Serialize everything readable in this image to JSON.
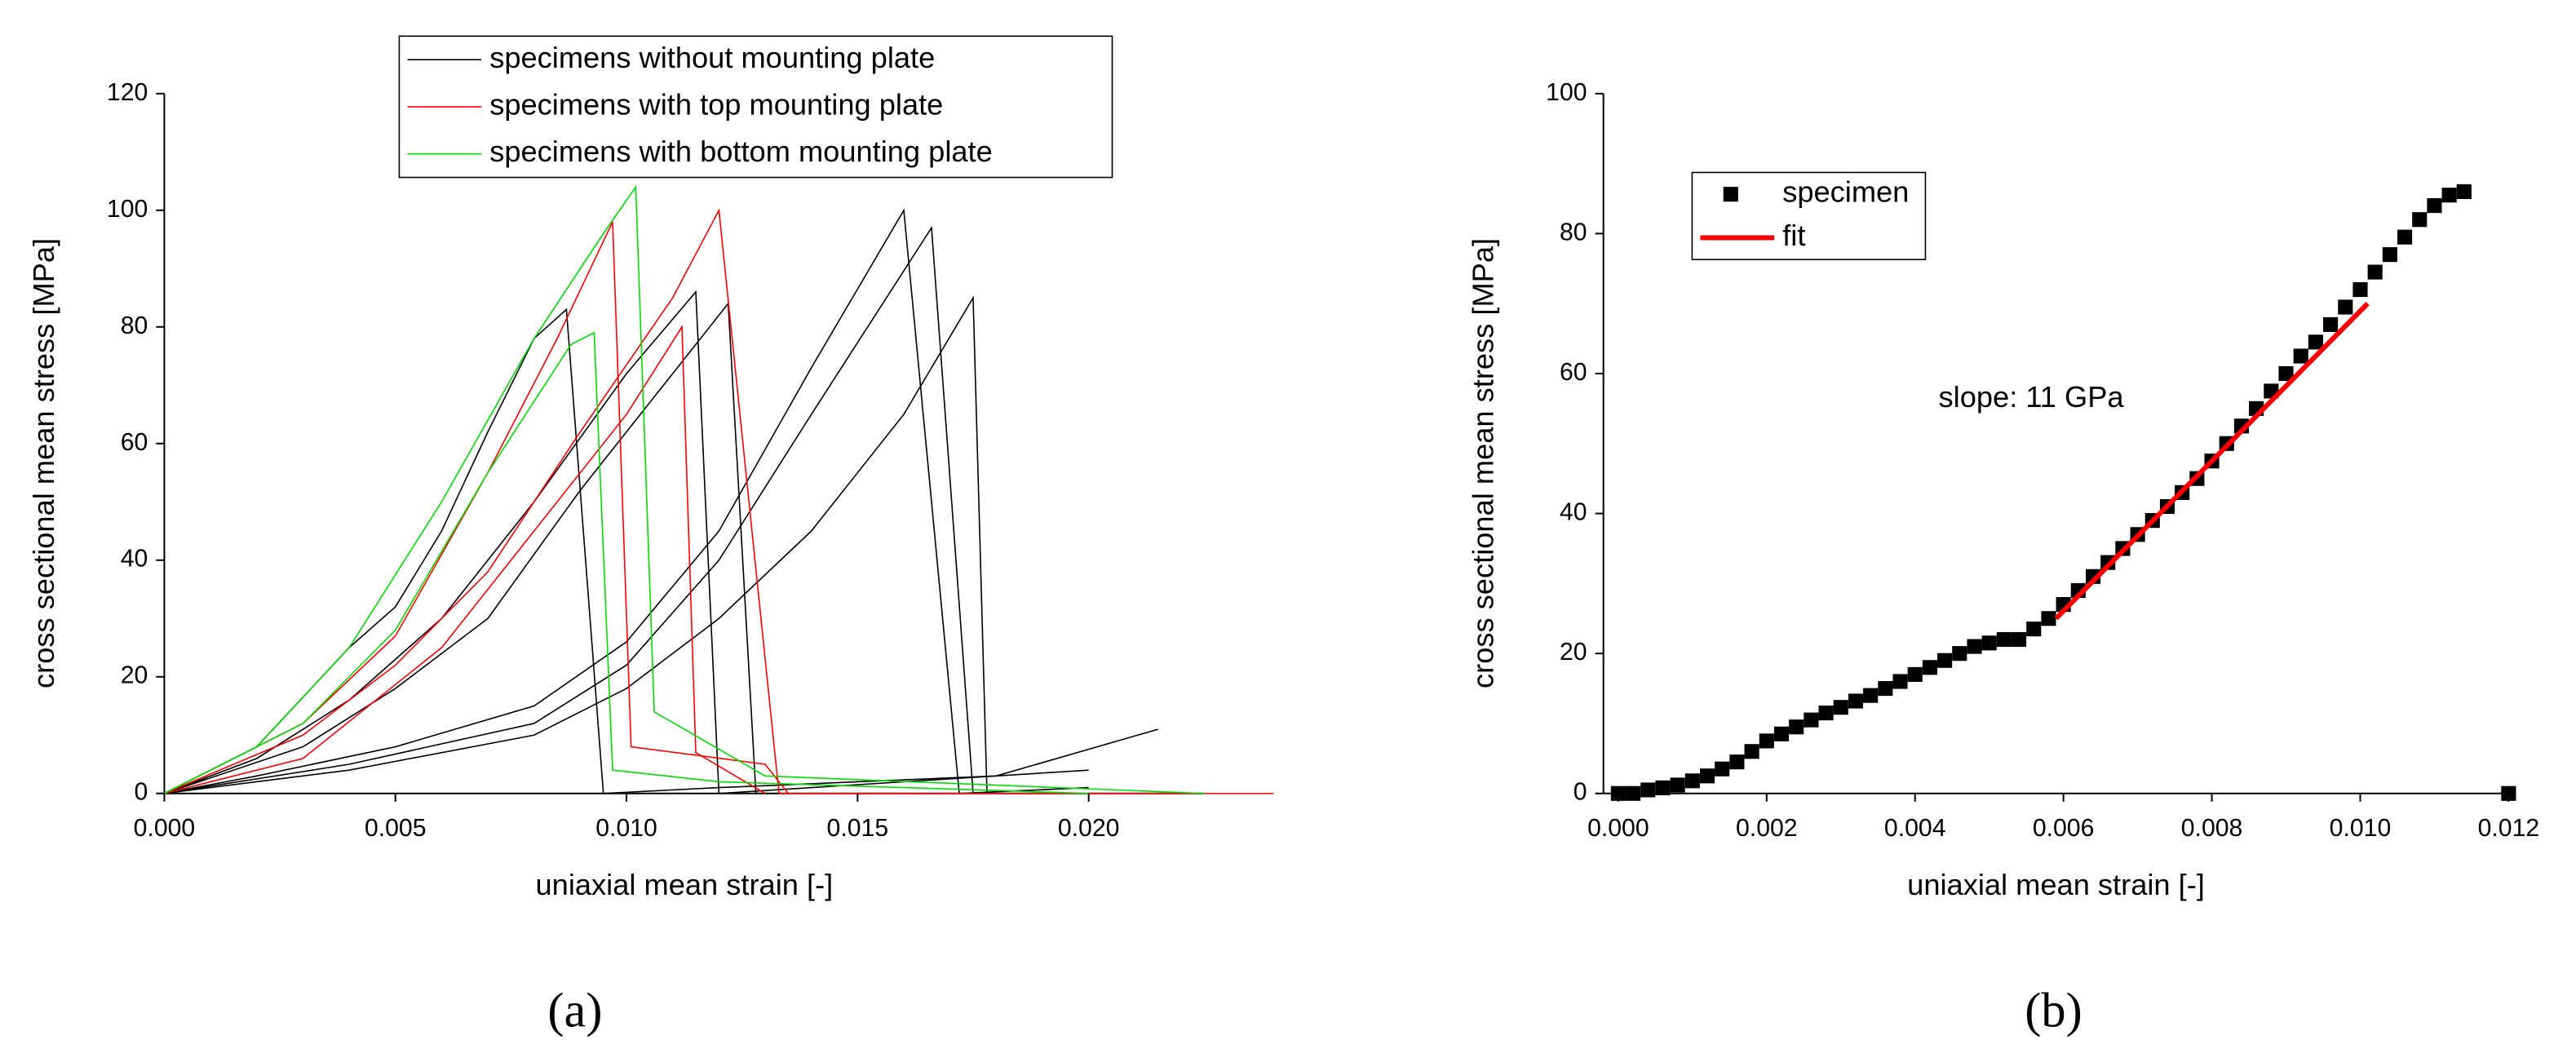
{
  "chart_data": [
    {
      "type": "line",
      "panel_label": "(a)",
      "x_label": "uniaxial mean strain [-]",
      "y_label": "cross sectional mean stress [MPa]",
      "xlim": [
        0,
        0.0225
      ],
      "ylim": [
        0,
        120
      ],
      "xticks": [
        {
          "value": 0,
          "label": "0.000"
        },
        {
          "value": 0.005,
          "label": "0.005"
        },
        {
          "value": 0.01,
          "label": "0.010"
        },
        {
          "value": 0.015,
          "label": "0.015"
        },
        {
          "value": 0.02,
          "label": "0.020"
        }
      ],
      "yticks": [
        0,
        20,
        40,
        60,
        80,
        100,
        120
      ],
      "series": [
        {
          "name": "specimens without mounting plate",
          "color": "#000000",
          "lines": [
            {
              "x": [
                0,
                0.002,
                0.004,
                0.005,
                0.006,
                0.007,
                0.008,
                0.0087,
                0.0095,
                0.012,
                0.018,
                0.0215
              ],
              "values": [
                0,
                8,
                25,
                32,
                45,
                62,
                78,
                83,
                0,
                1,
                3,
                11
              ]
            },
            {
              "x": [
                0,
                0.002,
                0.004,
                0.006,
                0.008,
                0.01,
                0.0115,
                0.012,
                0.02
              ],
              "values": [
                0,
                6,
                16,
                30,
                50,
                72,
                86,
                0,
                4
              ]
            },
            {
              "x": [
                0,
                0.003,
                0.005,
                0.007,
                0.009,
                0.011,
                0.0122,
                0.0128,
                0.02
              ],
              "values": [
                0,
                8,
                18,
                30,
                52,
                72,
                84,
                0,
                0
              ]
            },
            {
              "x": [
                0,
                0.002,
                0.005,
                0.008,
                0.01,
                0.012,
                0.014,
                0.016,
                0.0172,
                0.02
              ],
              "values": [
                0,
                3,
                8,
                15,
                26,
                45,
                73,
                100,
                0,
                1
              ]
            },
            {
              "x": [
                0,
                0.004,
                0.008,
                0.01,
                0.012,
                0.014,
                0.0166,
                0.0175,
                0.02
              ],
              "values": [
                0,
                5,
                12,
                22,
                40,
                65,
                97,
                0,
                0
              ]
            },
            {
              "x": [
                0,
                0.004,
                0.008,
                0.01,
                0.012,
                0.014,
                0.016,
                0.0175,
                0.0178,
                0.02
              ],
              "values": [
                0,
                4,
                10,
                18,
                30,
                45,
                65,
                85,
                0,
                0
              ]
            }
          ]
        },
        {
          "name": "specimens with top mounting plate",
          "color": "#ff0000",
          "lines": [
            {
              "x": [
                0,
                0.003,
                0.005,
                0.007,
                0.009,
                0.011,
                0.012,
                0.0133,
                0.024
              ],
              "values": [
                0,
                10,
                22,
                38,
                62,
                85,
                100,
                0,
                0
              ]
            },
            {
              "x": [
                0,
                0.003,
                0.005,
                0.007,
                0.0085,
                0.0097,
                0.0101,
                0.013,
                0.0135
              ],
              "values": [
                0,
                12,
                27,
                55,
                78,
                98,
                8,
                5,
                0
              ]
            },
            {
              "x": [
                0,
                0.003,
                0.006,
                0.008,
                0.01,
                0.0112,
                0.0115,
                0.013
              ],
              "values": [
                0,
                6,
                25,
                45,
                65,
                80,
                7,
                0
              ]
            }
          ]
        },
        {
          "name": "specimens with bottom mounting plate",
          "color": "#00dd00",
          "lines": [
            {
              "x": [
                0,
                0.002,
                0.004,
                0.006,
                0.008,
                0.0095,
                0.0102,
                0.0106,
                0.013,
                0.0225
              ],
              "values": [
                0,
                8,
                25,
                50,
                78,
                96,
                104,
                14,
                3,
                0
              ]
            },
            {
              "x": [
                0,
                0.003,
                0.005,
                0.007,
                0.0088,
                0.0093,
                0.0097,
                0.012,
                0.02
              ],
              "values": [
                0,
                12,
                28,
                55,
                77,
                79,
                4,
                2,
                0
              ]
            }
          ]
        }
      ]
    },
    {
      "type": "scatter",
      "panel_label": "(b)",
      "x_label": "uniaxial mean strain [-]",
      "y_label": "cross sectional mean stress [MPa]",
      "annotation": "slope: 11 GPa",
      "xlim": [
        -0.0002,
        0.012
      ],
      "ylim": [
        0,
        100
      ],
      "xticks": [
        {
          "value": 0,
          "label": "0.000"
        },
        {
          "value": 0.002,
          "label": "0.002"
        },
        {
          "value": 0.004,
          "label": "0.004"
        },
        {
          "value": 0.006,
          "label": "0.006"
        },
        {
          "value": 0.008,
          "label": "0.008"
        },
        {
          "value": 0.01,
          "label": "0.010"
        },
        {
          "value": 0.012,
          "label": "0.012"
        }
      ],
      "yticks": [
        0,
        20,
        40,
        60,
        80,
        100
      ],
      "series": [
        {
          "name": "specimen",
          "color": "#000000",
          "x": [
            0,
            0.0002,
            0.0004,
            0.0006,
            0.0008,
            0.001,
            0.0012,
            0.0014,
            0.0016,
            0.0018,
            0.002,
            0.0022,
            0.0024,
            0.0026,
            0.0028,
            0.003,
            0.0032,
            0.0034,
            0.0036,
            0.0038,
            0.004,
            0.0042,
            0.0044,
            0.0046,
            0.0048,
            0.005,
            0.0052,
            0.0054,
            0.0056,
            0.0058,
            0.006,
            0.0062,
            0.0064,
            0.0066,
            0.0068,
            0.007,
            0.0072,
            0.0074,
            0.0076,
            0.0078,
            0.008,
            0.0082,
            0.0084,
            0.0086,
            0.0088,
            0.009,
            0.0092,
            0.0094,
            0.0096,
            0.0098,
            0.01,
            0.0102,
            0.0104,
            0.0106,
            0.0108,
            0.011,
            0.0112,
            0.0114,
            0.012
          ],
          "values": [
            0,
            0,
            0.5,
            0.8,
            1.2,
            1.8,
            2.5,
            3.5,
            4.5,
            6,
            7.5,
            8.5,
            9.5,
            10.5,
            11.5,
            12.3,
            13.2,
            14,
            15,
            16,
            17,
            18,
            19,
            20,
            21,
            21.5,
            22,
            22,
            23.5,
            25,
            27,
            29,
            31,
            33,
            35,
            37,
            39,
            41,
            43,
            45,
            47.5,
            50,
            52.5,
            55,
            57.5,
            60,
            62.5,
            64.5,
            67,
            69.5,
            72,
            74.5,
            77,
            79.5,
            82,
            84,
            85.5,
            86,
            0
          ]
        },
        {
          "name": "fit",
          "color": "#ff0000",
          "x": [
            0.0059,
            0.0101
          ],
          "values": [
            25,
            70
          ]
        }
      ]
    }
  ]
}
